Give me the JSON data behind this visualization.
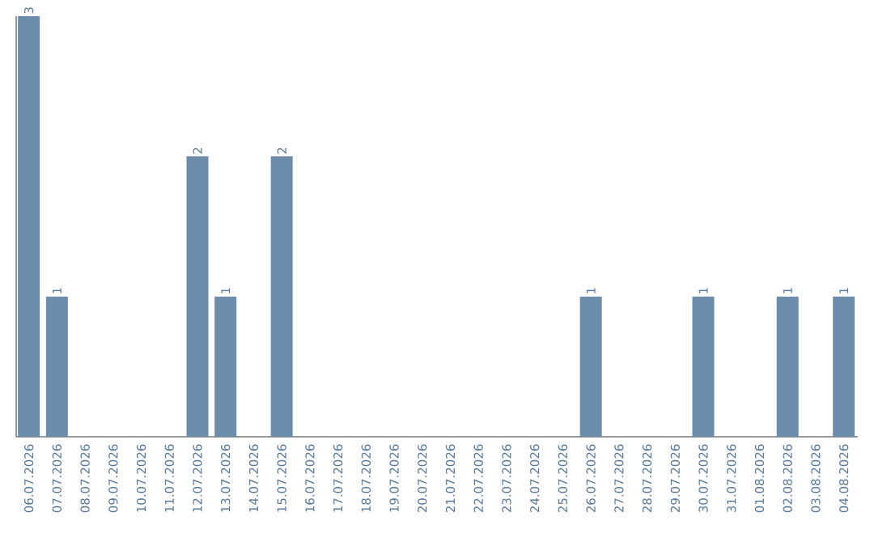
{
  "chart_data": {
    "type": "bar",
    "categories": [
      "06.07.2026",
      "07.07.2026",
      "08.07.2026",
      "09.07.2026",
      "10.07.2026",
      "11.07.2026",
      "12.07.2026",
      "13.07.2026",
      "14.07.2026",
      "15.07.2026",
      "16.07.2026",
      "17.07.2026",
      "18.07.2026",
      "19.07.2026",
      "20.07.2026",
      "21.07.2026",
      "22.07.2026",
      "23.07.2026",
      "24.07.2026",
      "25.07.2026",
      "26.07.2026",
      "27.07.2026",
      "28.07.2026",
      "29.07.2026",
      "30.07.2026",
      "31.07.2026",
      "01.08.2026",
      "02.08.2026",
      "03.08.2026",
      "04.08.2026"
    ],
    "values": [
      3,
      1,
      0,
      0,
      0,
      0,
      2,
      1,
      0,
      2,
      0,
      0,
      0,
      0,
      0,
      0,
      0,
      0,
      0,
      0,
      1,
      0,
      0,
      0,
      1,
      0,
      0,
      1,
      0,
      1
    ],
    "color": "#6b8caa",
    "value_labels": [
      "3",
      "1",
      null,
      null,
      null,
      null,
      "2",
      "1",
      null,
      "2",
      null,
      null,
      null,
      null,
      null,
      null,
      null,
      null,
      null,
      null,
      "1",
      null,
      null,
      null,
      "1",
      null,
      null,
      "1",
      null,
      "1"
    ]
  }
}
